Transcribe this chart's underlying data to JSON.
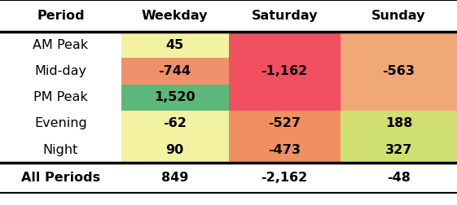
{
  "rows": [
    "AM Peak",
    "Mid-day",
    "PM Peak",
    "Evening",
    "Night"
  ],
  "cols": [
    "Weekday",
    "Saturday",
    "Sunday"
  ],
  "display_values": [
    [
      "45",
      "",
      ""
    ],
    [
      "-744",
      "-1,162",
      "-563"
    ],
    [
      "1,520",
      "",
      ""
    ],
    [
      "-62",
      "-527",
      "188"
    ],
    [
      "90",
      "-473",
      "327"
    ]
  ],
  "total_display": [
    "849",
    "-2,162",
    "-48"
  ],
  "cell_colors": [
    [
      "#f2f2a0",
      "#f05060",
      "#f0a878"
    ],
    [
      "#f0906a",
      "#f05060",
      "#f0a878"
    ],
    [
      "#5cb878",
      "#f05060",
      "#f0a878"
    ],
    [
      "#f2f2a0",
      "#f09060",
      "#d0e070"
    ],
    [
      "#f2f2a0",
      "#f09060",
      "#d0e070"
    ]
  ],
  "col_header": "Period",
  "header_cols": [
    "Weekday",
    "Saturday",
    "Sunday"
  ]
}
